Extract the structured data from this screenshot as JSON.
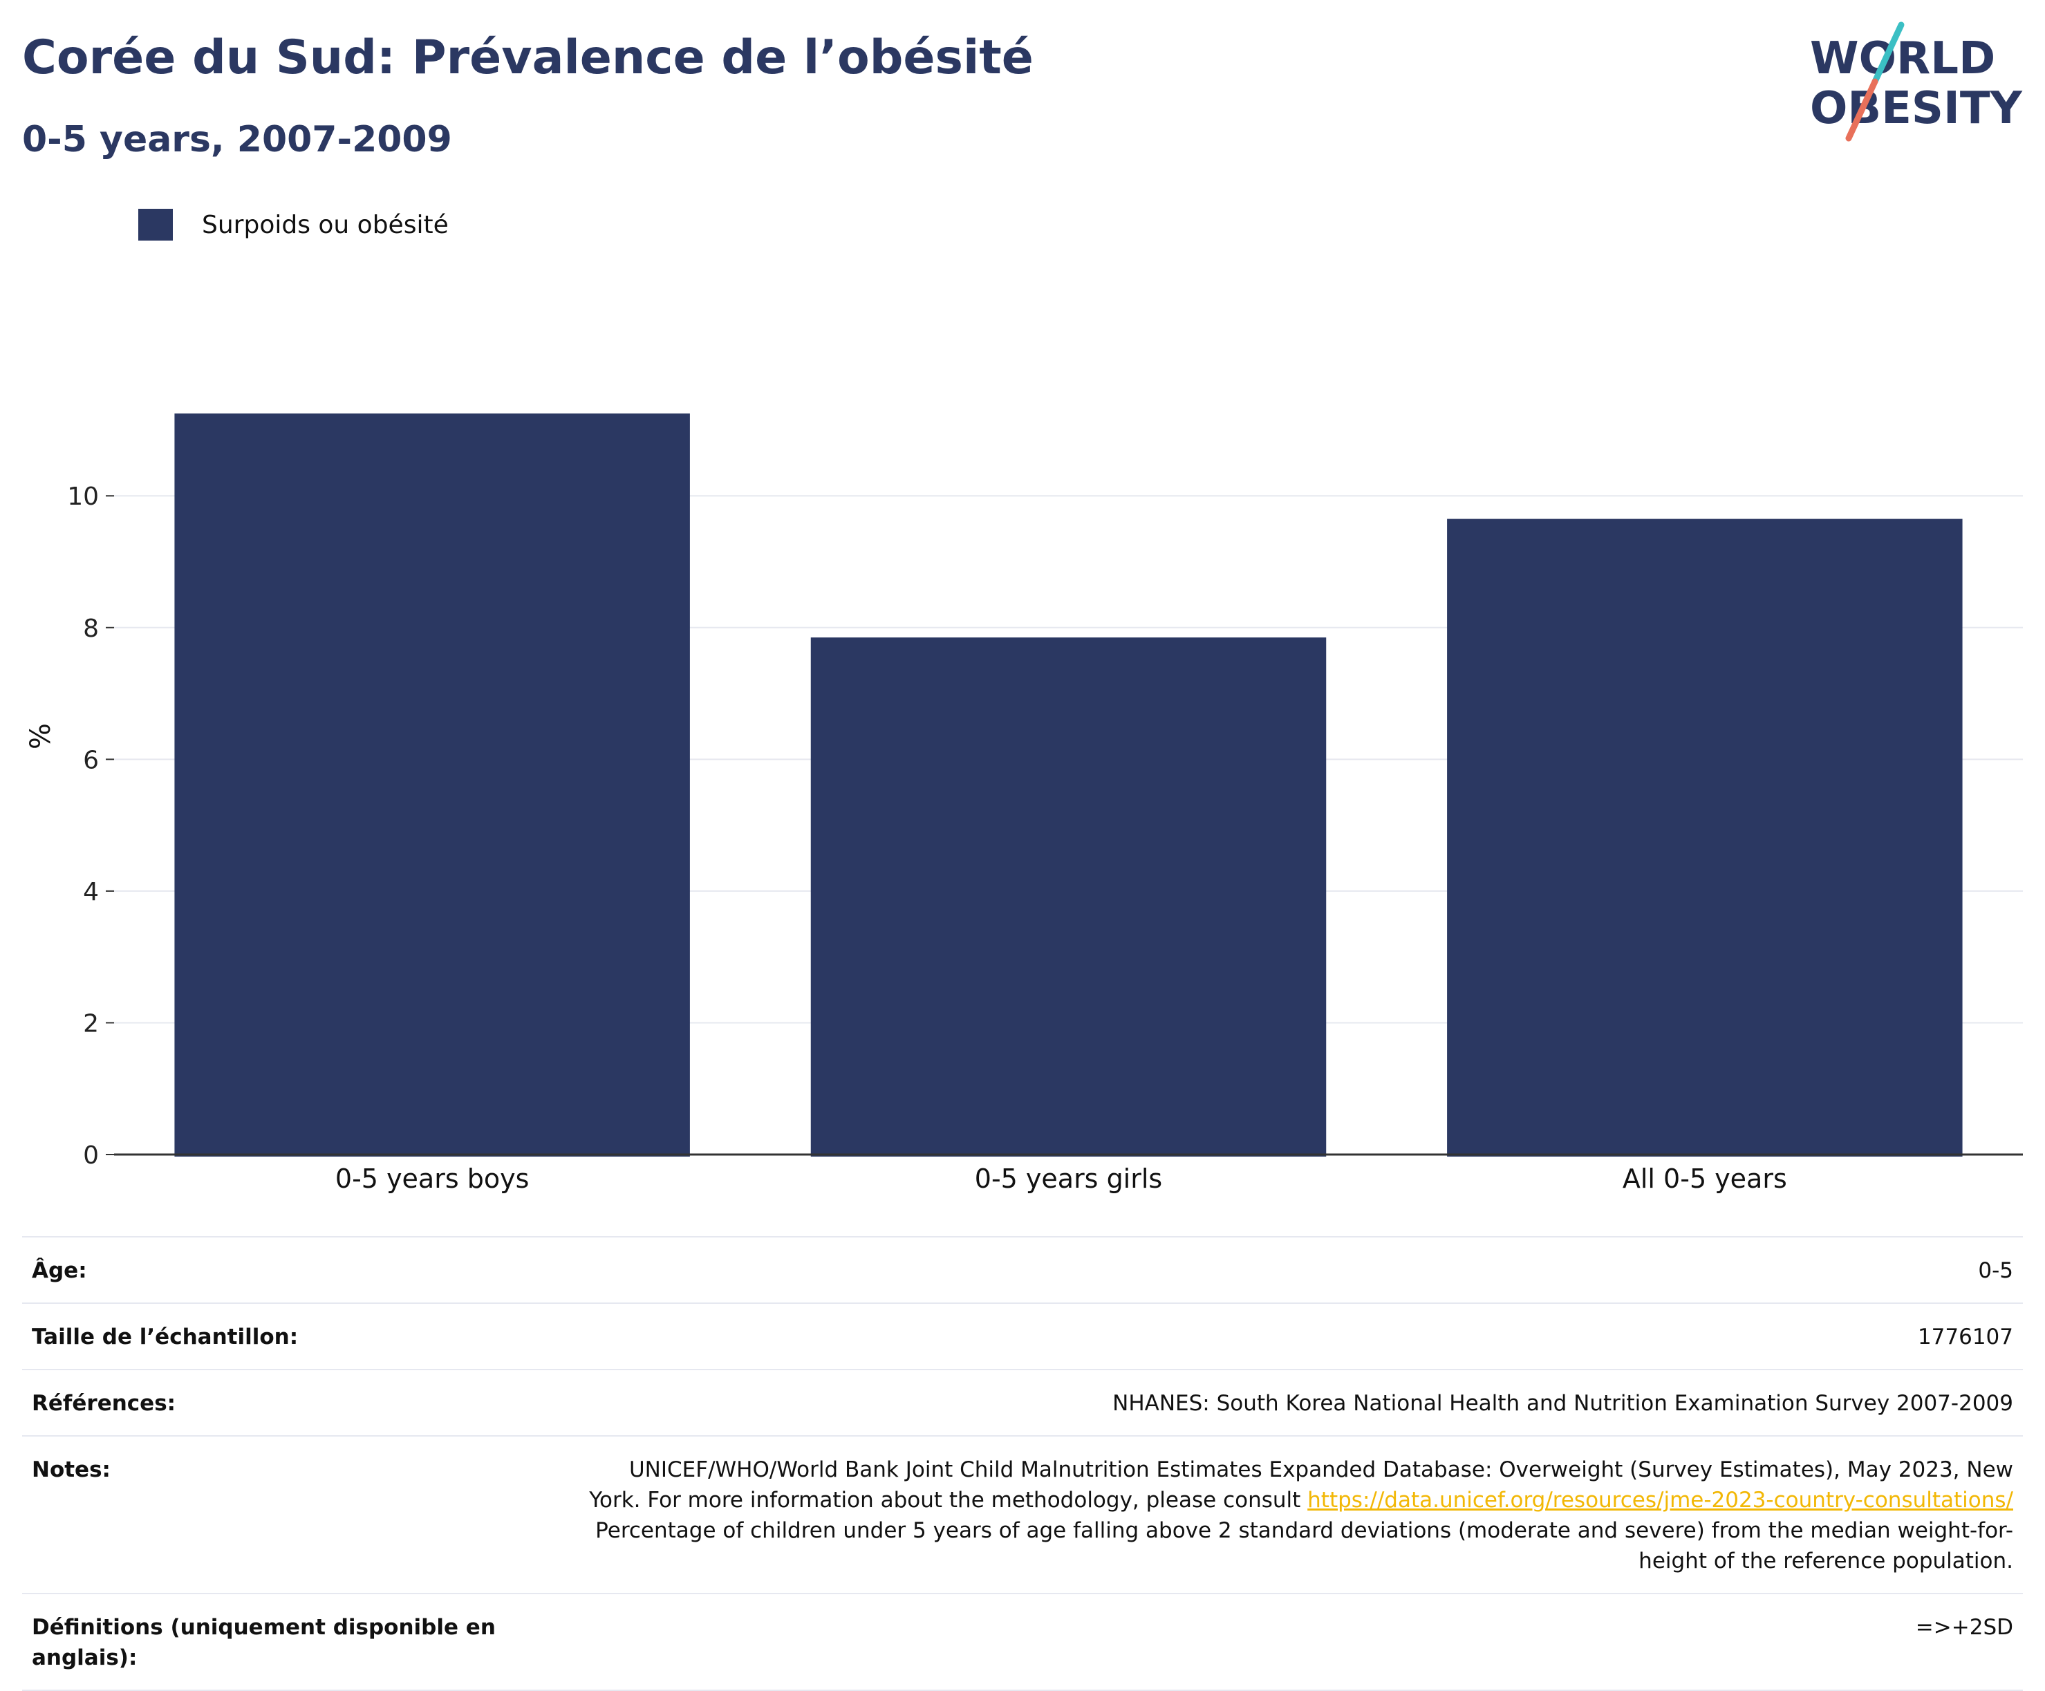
{
  "header": {
    "title": "Corée du Sud: Prévalence de l’obésité",
    "subtitle": "0-5 years, 2007-2009"
  },
  "logo": {
    "line1": "WORLD",
    "line2": "OBESITY",
    "colors": {
      "text": "#2b3862",
      "slash_top": "#3bbfc4",
      "slash_bottom": "#e8705a"
    }
  },
  "colors": {
    "bar": "#2b3862",
    "grid": "#e6e8ef",
    "axis": "#333333"
  },
  "chart_data": {
    "type": "bar",
    "categories": [
      "0-5 years boys",
      "0-5 years girls",
      "All 0-5 years"
    ],
    "series": [
      {
        "name": "Surpoids ou obésité",
        "values": [
          11.25,
          7.85,
          9.65
        ]
      }
    ],
    "ylabel": "%",
    "xlabel": "",
    "ylim": [
      0,
      12.7
    ],
    "yticks": [
      0,
      2,
      4,
      6,
      8,
      10
    ],
    "grid": true,
    "legend": "top-left"
  },
  "info": [
    {
      "key": "Âge:",
      "value": "0-5"
    },
    {
      "key": "Taille de l’échantillon:",
      "value": "1776107"
    },
    {
      "key": "Références:",
      "value": "NHANES: South Korea National Health and Nutrition Examination Survey 2007-2009"
    },
    {
      "key": "Notes:",
      "value_before": "UNICEF/WHO/World Bank Joint Child Malnutrition Estimates Expanded Database: Overweight (Survey Estimates), May 2023, New York. For more information about the methodology, please consult ",
      "link": "https://data.unicef.org/resources/jme-2023-country-consultations/",
      "value_after": " Percentage of children under 5 years of age falling above 2 standard deviations (moderate and severe) from the median weight-for-height of the reference population."
    },
    {
      "key": "Définitions (uniquement disponible en anglais):",
      "value": "=>+2SD"
    }
  ]
}
